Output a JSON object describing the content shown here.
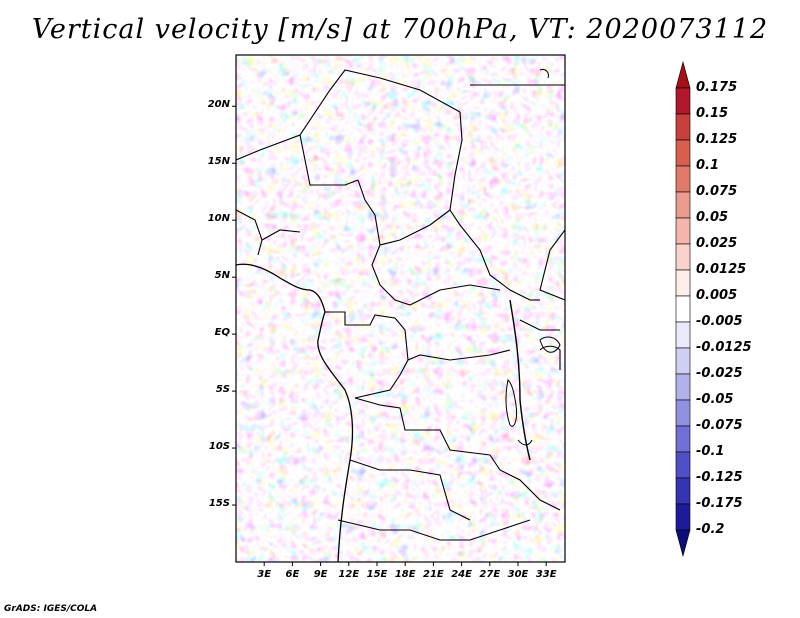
{
  "title": "Vertical velocity [m/s] at 700hPa, VT: 2020073112",
  "credit": "GrADS: IGES/COLA",
  "lat_labels": [
    "20N",
    "15N",
    "10N",
    "5N",
    "EQ",
    "5S",
    "10S",
    "15S"
  ],
  "lat_values": [
    20,
    15,
    10,
    5,
    0,
    -5,
    -10,
    -15
  ],
  "lon_labels": [
    "3E",
    "6E",
    "9E",
    "12E",
    "15E",
    "18E",
    "21E",
    "24E",
    "27E",
    "30E",
    "33E"
  ],
  "lon_values": [
    3,
    6,
    9,
    12,
    15,
    18,
    21,
    24,
    27,
    30,
    33
  ],
  "extent": {
    "lon_min": 0,
    "lon_max": 35,
    "lat_min": -20,
    "lat_max": 24.5
  },
  "colorbar": {
    "labels": [
      "0.175",
      "0.15",
      "0.125",
      "0.1",
      "0.075",
      "0.05",
      "0.025",
      "0.0125",
      "0.005",
      "-0.005",
      "-0.0125",
      "-0.025",
      "-0.05",
      "-0.075",
      "-0.1",
      "-0.125",
      "-0.175",
      "-0.2"
    ],
    "colors": [
      "#a50f15",
      "#b2182b",
      "#c8403c",
      "#d6604d",
      "#e27a6c",
      "#ec9c8f",
      "#f4b5aa",
      "#f9d3cb",
      "#fdeeea",
      "#ffffff",
      "#e9e9fb",
      "#cfcff4",
      "#b1b1ec",
      "#9191e2",
      "#7070d6",
      "#5050c6",
      "#3434b4",
      "#1c1c9a",
      "#0c0c7c"
    ]
  }
}
